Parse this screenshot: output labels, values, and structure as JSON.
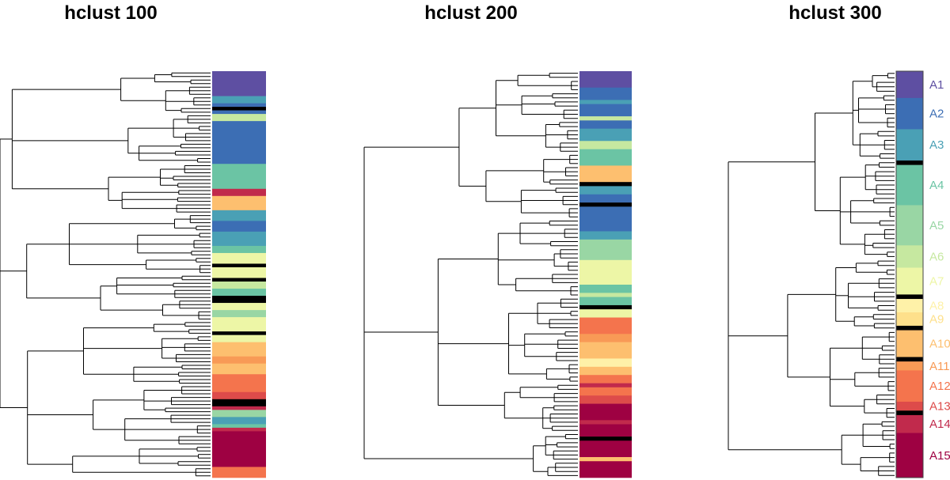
{
  "palette": {
    "A1": "#5E4FA2",
    "A2": "#3C6EB4",
    "A3": "#4AA0B5",
    "A4": "#6BC4A4",
    "A5": "#99D6A4",
    "A6": "#C6E8A0",
    "A7": "#EDF6A6",
    "A8": "#FEF1A8",
    "A9": "#FEE08B",
    "A10": "#FDBF6F",
    "A11": "#F89A56",
    "A12": "#F4744D",
    "A13": "#DD4B4A",
    "A14": "#C12A4C",
    "A15": "#9E0142",
    "unassigned": "#000000"
  },
  "chart_data": [
    {
      "type": "dendrogram-heatmap",
      "title": "hclust 100",
      "strip": [
        {
          "cluster": "A1",
          "rows": 7
        },
        {
          "cluster": "A3",
          "rows": 2
        },
        {
          "cluster": "A2",
          "rows": 1
        },
        {
          "cluster": "unassigned",
          "rows": 1
        },
        {
          "cluster": "A2",
          "rows": 1
        },
        {
          "cluster": "A6",
          "rows": 2
        },
        {
          "cluster": "A2",
          "rows": 12
        },
        {
          "cluster": "A4",
          "rows": 7
        },
        {
          "cluster": "A14",
          "rows": 2
        },
        {
          "cluster": "A10",
          "rows": 4
        },
        {
          "cluster": "A3",
          "rows": 3
        },
        {
          "cluster": "A2",
          "rows": 3
        },
        {
          "cluster": "A3",
          "rows": 4
        },
        {
          "cluster": "A4",
          "rows": 2
        },
        {
          "cluster": "A7",
          "rows": 3
        },
        {
          "cluster": "unassigned",
          "rows": 1
        },
        {
          "cluster": "A7",
          "rows": 3
        },
        {
          "cluster": "unassigned",
          "rows": 1
        },
        {
          "cluster": "A6",
          "rows": 2
        },
        {
          "cluster": "A4",
          "rows": 2
        },
        {
          "cluster": "unassigned",
          "rows": 2
        },
        {
          "cluster": "A7",
          "rows": 2
        },
        {
          "cluster": "A5",
          "rows": 2
        },
        {
          "cluster": "A7",
          "rows": 4
        },
        {
          "cluster": "unassigned",
          "rows": 1
        },
        {
          "cluster": "A7",
          "rows": 2
        },
        {
          "cluster": "A10",
          "rows": 4
        },
        {
          "cluster": "A11",
          "rows": 2
        },
        {
          "cluster": "A10",
          "rows": 3
        },
        {
          "cluster": "A12",
          "rows": 5
        },
        {
          "cluster": "A13",
          "rows": 2
        },
        {
          "cluster": "unassigned",
          "rows": 2
        },
        {
          "cluster": "A14",
          "rows": 1
        },
        {
          "cluster": "A5",
          "rows": 2
        },
        {
          "cluster": "A3",
          "rows": 2
        },
        {
          "cluster": "A4",
          "rows": 1
        },
        {
          "cluster": "A14",
          "rows": 1
        },
        {
          "cluster": "A15",
          "rows": 10
        },
        {
          "cluster": "A12",
          "rows": 3
        }
      ]
    },
    {
      "type": "dendrogram-heatmap",
      "title": "hclust 200",
      "strip": [
        {
          "cluster": "A1",
          "rows": 4
        },
        {
          "cluster": "A2",
          "rows": 3
        },
        {
          "cluster": "A3",
          "rows": 1
        },
        {
          "cluster": "A2",
          "rows": 3
        },
        {
          "cluster": "A6",
          "rows": 1
        },
        {
          "cluster": "A2",
          "rows": 2
        },
        {
          "cluster": "A3",
          "rows": 3
        },
        {
          "cluster": "A6",
          "rows": 2
        },
        {
          "cluster": "A4",
          "rows": 4
        },
        {
          "cluster": "A10",
          "rows": 4
        },
        {
          "cluster": "unassigned",
          "rows": 1
        },
        {
          "cluster": "A3",
          "rows": 2
        },
        {
          "cluster": "A2",
          "rows": 2
        },
        {
          "cluster": "unassigned",
          "rows": 1
        },
        {
          "cluster": "A2",
          "rows": 6
        },
        {
          "cluster": "A3",
          "rows": 2
        },
        {
          "cluster": "A5",
          "rows": 5
        },
        {
          "cluster": "A7",
          "rows": 6
        },
        {
          "cluster": "A4",
          "rows": 2
        },
        {
          "cluster": "A6",
          "rows": 1
        },
        {
          "cluster": "A4",
          "rows": 2
        },
        {
          "cluster": "unassigned",
          "rows": 1
        },
        {
          "cluster": "A7",
          "rows": 2
        },
        {
          "cluster": "A12",
          "rows": 4
        },
        {
          "cluster": "A11",
          "rows": 2
        },
        {
          "cluster": "A10",
          "rows": 4
        },
        {
          "cluster": "A8",
          "rows": 2
        },
        {
          "cluster": "A10",
          "rows": 2
        },
        {
          "cluster": "A12",
          "rows": 2
        },
        {
          "cluster": "A14",
          "rows": 1
        },
        {
          "cluster": "A12",
          "rows": 2
        },
        {
          "cluster": "A13",
          "rows": 2
        },
        {
          "cluster": "A15",
          "rows": 4
        },
        {
          "cluster": "A14",
          "rows": 1
        },
        {
          "cluster": "A15",
          "rows": 3
        },
        {
          "cluster": "unassigned",
          "rows": 1
        },
        {
          "cluster": "A15",
          "rows": 4
        },
        {
          "cluster": "A10",
          "rows": 1
        },
        {
          "cluster": "A15",
          "rows": 4
        }
      ]
    },
    {
      "type": "dendrogram-heatmap",
      "title": "hclust 300",
      "strip": [
        {
          "cluster": "A1",
          "rows": 6
        },
        {
          "cluster": "A2",
          "rows": 7
        },
        {
          "cluster": "A3",
          "rows": 7
        },
        {
          "cluster": "unassigned",
          "rows": 1
        },
        {
          "cluster": "A4",
          "rows": 9
        },
        {
          "cluster": "A5",
          "rows": 9
        },
        {
          "cluster": "A6",
          "rows": 5
        },
        {
          "cluster": "A7",
          "rows": 6
        },
        {
          "cluster": "unassigned",
          "rows": 1
        },
        {
          "cluster": "A8",
          "rows": 3
        },
        {
          "cluster": "A9",
          "rows": 3
        },
        {
          "cluster": "unassigned",
          "rows": 1
        },
        {
          "cluster": "A10",
          "rows": 6
        },
        {
          "cluster": "unassigned",
          "rows": 1
        },
        {
          "cluster": "A11",
          "rows": 2
        },
        {
          "cluster": "A12",
          "rows": 7
        },
        {
          "cluster": "A13",
          "rows": 2
        },
        {
          "cluster": "unassigned",
          "rows": 1
        },
        {
          "cluster": "A14",
          "rows": 4
        },
        {
          "cluster": "A15",
          "rows": 10
        }
      ],
      "cluster_labels": [
        "A1",
        "A2",
        "A3",
        "A4",
        "A5",
        "A6",
        "A7",
        "A8",
        "A9",
        "A10",
        "A11",
        "A12",
        "A13",
        "A14",
        "A15"
      ]
    }
  ]
}
